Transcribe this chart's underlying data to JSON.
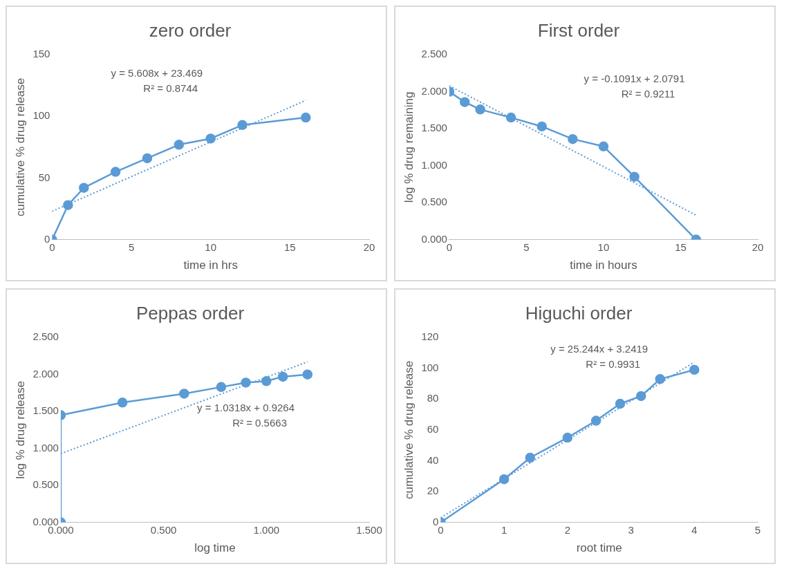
{
  "chart_data": [
    {
      "type": "line",
      "title": "zero order",
      "xlabel": "time in hrs",
      "ylabel": "cumulative % drug release",
      "xlim": [
        0,
        20
      ],
      "xticks": [
        0,
        5,
        10,
        15,
        20
      ],
      "ylim": [
        0,
        150
      ],
      "yticks": [
        0,
        50,
        100,
        150
      ],
      "grid": false,
      "legend": false,
      "annotations": [
        "y = 5.608x + 23.469",
        "R² = 0.8744"
      ],
      "series": [
        {
          "color": "#5b9bd5",
          "marker": "circle",
          "line_style": "solid",
          "x": [
            0,
            1,
            2,
            4,
            6,
            8,
            10,
            12,
            16
          ],
          "values": [
            0,
            28,
            42,
            55,
            66,
            77,
            82,
            93,
            99
          ]
        },
        {
          "color": "#5b9bd5",
          "marker": "none",
          "line_style": "dotted",
          "x": [
            0,
            16
          ],
          "values": [
            23,
            113
          ]
        }
      ]
    },
    {
      "type": "line",
      "title": "First order",
      "xlabel": "time in hours",
      "ylabel": "log % drug remaining",
      "xlim": [
        0,
        20
      ],
      "xticks": [
        0,
        5,
        10,
        15,
        20
      ],
      "ylim": [
        0,
        2.5
      ],
      "yticks": [
        {
          "value": 0,
          "label": "0.000"
        },
        {
          "value": 0.5,
          "label": "0.500"
        },
        {
          "value": 1,
          "label": "1.000"
        },
        {
          "value": 1.5,
          "label": "1.500"
        },
        {
          "value": 2,
          "label": "2.000"
        },
        {
          "value": 2.5,
          "label": "2.500"
        }
      ],
      "grid": false,
      "legend": false,
      "annotations": [
        "y = -0.1091x + 2.0791",
        "R² = 0.9211"
      ],
      "series": [
        {
          "color": "#5b9bd5",
          "marker": "circle",
          "line_style": "solid",
          "x": [
            0,
            1,
            2,
            4,
            6,
            8,
            10,
            12,
            16
          ],
          "values": [
            2.0,
            1.86,
            1.76,
            1.65,
            1.53,
            1.36,
            1.26,
            0.85,
            0.0
          ]
        },
        {
          "color": "#5b9bd5",
          "marker": "none",
          "line_style": "dotted",
          "x": [
            0,
            16
          ],
          "values": [
            2.08,
            0.33
          ]
        }
      ]
    },
    {
      "type": "line",
      "title": "Peppas order",
      "xlabel": "log time",
      "ylabel": "log % drug release",
      "xlim": [
        0,
        1.5
      ],
      "xticks": [
        {
          "value": 0,
          "label": "0.000"
        },
        {
          "value": 0.5,
          "label": "0.500"
        },
        {
          "value": 1,
          "label": "1.000"
        },
        {
          "value": 1.5,
          "label": "1.500"
        }
      ],
      "ylim": [
        0,
        2.5
      ],
      "yticks": [
        {
          "value": 0,
          "label": "0.000"
        },
        {
          "value": 0.5,
          "label": "0.500"
        },
        {
          "value": 1,
          "label": "1.000"
        },
        {
          "value": 1.5,
          "label": "1.500"
        },
        {
          "value": 2,
          "label": "2.000"
        },
        {
          "value": 2.5,
          "label": "2.500"
        }
      ],
      "grid": false,
      "legend": false,
      "annotations": [
        "y = 1.0318x + 0.9264",
        "R² = 0.5663"
      ],
      "series": [
        {
          "color": "#5b9bd5",
          "marker": "circle",
          "line_style": "solid",
          "x": [
            0,
            0,
            0.3,
            0.6,
            0.78,
            0.9,
            1.0,
            1.08,
            1.2
          ],
          "values": [
            0,
            1.45,
            1.62,
            1.74,
            1.83,
            1.89,
            1.91,
            1.97,
            2.0
          ]
        },
        {
          "color": "#5b9bd5",
          "marker": "none",
          "line_style": "dotted",
          "x": [
            0,
            1.2
          ],
          "values": [
            0.93,
            2.17
          ]
        }
      ]
    },
    {
      "type": "line",
      "title": "Higuchi order",
      "xlabel": "root time",
      "ylabel": "cumulative % drug release",
      "xlim": [
        0,
        5
      ],
      "xticks": [
        0,
        1,
        2,
        3,
        4,
        5
      ],
      "ylim": [
        0,
        120
      ],
      "yticks": [
        0,
        20,
        40,
        60,
        80,
        100,
        120
      ],
      "grid": false,
      "legend": false,
      "annotations": [
        "y = 25.244x + 3.2419",
        "R² = 0.9931"
      ],
      "series": [
        {
          "color": "#5b9bd5",
          "marker": "circle",
          "line_style": "solid",
          "x": [
            0,
            1,
            1.41,
            2,
            2.45,
            2.83,
            3.16,
            3.46,
            4
          ],
          "values": [
            0,
            28,
            42,
            55,
            66,
            77,
            82,
            93,
            99
          ]
        },
        {
          "color": "#5b9bd5",
          "marker": "none",
          "line_style": "dotted",
          "x": [
            0,
            4
          ],
          "values": [
            3,
            104
          ]
        }
      ]
    }
  ]
}
